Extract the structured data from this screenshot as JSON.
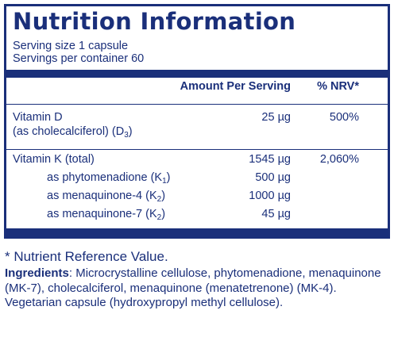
{
  "panel": {
    "title": "Nutrition Information",
    "serving_size": "Serving size  1 capsule",
    "servings_per_container": "Servings per container  60",
    "header_amount": "Amount Per Serving",
    "header_nrv": "% NRV*"
  },
  "rows": [
    {
      "name": "Vitamin D",
      "name_line2_pre": "(as cholecalciferol) (D",
      "name_line2_sub": "3",
      "name_line2_post": ")",
      "amount": "25 µg",
      "nrv": "500%"
    },
    {
      "name": "Vitamin K (total)",
      "amount": "1545 µg",
      "nrv": "2,060%"
    },
    {
      "name_pre": "as phytomenadione (K",
      "name_sub": "1",
      "name_post": ")",
      "amount": "500 µg"
    },
    {
      "name_pre": "as menaquinone-4 (K",
      "name_sub": "2",
      "name_post": ")",
      "amount": "1000 µg"
    },
    {
      "name_pre": "as menaquinone-7 (K",
      "name_sub": "2",
      "name_post": ")",
      "amount": "45 µg"
    }
  ],
  "footnote": "* Nutrient Reference Value.",
  "ingredients": {
    "label": "Ingredients",
    "text": ": Microcrystalline cellulose, phytomenadione, menaquinone (MK-7), cholecalciferol, menaquinone (menatetrenone) (MK-4). Vegetarian capsule (hydroxypropyl methyl cellulose)."
  },
  "colors": {
    "text": "#1a2f7a",
    "background": "#ffffff"
  }
}
